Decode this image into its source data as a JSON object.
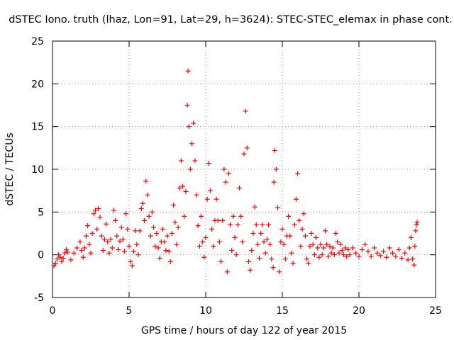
{
  "chart_data": {
    "type": "scatter",
    "title": "dSTEC Iono. truth (lhaz, Lon=91, Lat=29, h=3624): STEC-STEC_elemax in phase cont.",
    "xlabel": "GPS time / hours of day 122 of year 2015",
    "ylabel": "dSTEC  / TECUs",
    "xlim": [
      0,
      25
    ],
    "ylim": [
      -5,
      25
    ],
    "x_ticks": [
      "0",
      "5",
      "10",
      "15",
      "20",
      "25"
    ],
    "y_ticks": [
      "-5",
      "0",
      "5",
      "10",
      "15",
      "20",
      "25"
    ],
    "grid": true,
    "marker": "+",
    "color": "#ff0000",
    "series": [
      {
        "values": [
          [
            0.1,
            -1.3
          ],
          [
            0.2,
            -1.0
          ],
          [
            0.3,
            -0.5
          ],
          [
            0.4,
            0.0
          ],
          [
            0.5,
            -0.3
          ],
          [
            0.6,
            -0.8
          ],
          [
            0.7,
            -0.4
          ],
          [
            0.8,
            0.2
          ],
          [
            0.9,
            0.6
          ],
          [
            1.0,
            0.3
          ],
          [
            1.2,
            -0.6
          ],
          [
            1.4,
            0.2
          ],
          [
            1.6,
            0.8
          ],
          [
            1.8,
            1.5
          ],
          [
            1.9,
            0.5
          ],
          [
            2.0,
            -0.3
          ],
          [
            2.1,
            0.8
          ],
          [
            2.2,
            2.2
          ],
          [
            2.3,
            3.4
          ],
          [
            2.4,
            1.2
          ],
          [
            2.5,
            0.2
          ],
          [
            2.6,
            2.5
          ],
          [
            2.7,
            4.8
          ],
          [
            2.8,
            5.2
          ],
          [
            2.9,
            3.0
          ],
          [
            3.0,
            5.4
          ],
          [
            3.1,
            4.4
          ],
          [
            3.2,
            2.2
          ],
          [
            3.3,
            0.5
          ],
          [
            3.4,
            1.8
          ],
          [
            3.5,
            3.6
          ],
          [
            3.6,
            1.5
          ],
          [
            3.7,
            0.2
          ],
          [
            3.8,
            1.8
          ],
          [
            3.9,
            0.8
          ],
          [
            4.0,
            5.2
          ],
          [
            4.1,
            4.0
          ],
          [
            4.2,
            2.2
          ],
          [
            4.3,
            0.6
          ],
          [
            4.4,
            1.6
          ],
          [
            4.5,
            3.2
          ],
          [
            4.6,
            1.8
          ],
          [
            4.7,
            0.4
          ],
          [
            4.8,
            4.8
          ],
          [
            4.9,
            3.0
          ],
          [
            5.0,
            1.0
          ],
          [
            5.1,
            -0.8
          ],
          [
            5.2,
            -1.3
          ],
          [
            5.3,
            0.4
          ],
          [
            5.4,
            2.8
          ],
          [
            5.5,
            1.2
          ],
          [
            5.6,
            0.0
          ],
          [
            5.7,
            2.8
          ],
          [
            5.8,
            5.4
          ],
          [
            5.9,
            6.0
          ],
          [
            6.0,
            4.0
          ],
          [
            6.1,
            8.6
          ],
          [
            6.2,
            7.0
          ],
          [
            6.3,
            4.5
          ],
          [
            6.4,
            2.2
          ],
          [
            6.5,
            5.0
          ],
          [
            6.6,
            3.2
          ],
          [
            6.7,
            1.0
          ],
          [
            6.8,
            2.5
          ],
          [
            6.9,
            0.8
          ],
          [
            7.0,
            -0.4
          ],
          [
            7.1,
            1.5
          ],
          [
            7.2,
            3.0
          ],
          [
            7.3,
            1.5
          ],
          [
            7.4,
            0.5
          ],
          [
            7.5,
            2.2
          ],
          [
            7.6,
            0.4
          ],
          [
            7.7,
            -0.8
          ],
          [
            7.8,
            2.5
          ],
          [
            7.9,
            5.8
          ],
          [
            8.0,
            3.8
          ],
          [
            8.1,
            1.2
          ],
          [
            8.2,
            3.2
          ],
          [
            8.3,
            7.8
          ],
          [
            8.4,
            11.0
          ],
          [
            8.5,
            8.0
          ],
          [
            8.6,
            4.5
          ],
          [
            8.7,
            7.4
          ],
          [
            8.8,
            17.5
          ],
          [
            8.85,
            21.5
          ],
          [
            8.9,
            15.0
          ],
          [
            9.0,
            10.0
          ],
          [
            9.1,
            13.0
          ],
          [
            9.2,
            15.4
          ],
          [
            9.3,
            11.0
          ],
          [
            9.4,
            7.0
          ],
          [
            9.5,
            3.4
          ],
          [
            9.6,
            1.0
          ],
          [
            9.7,
            4.5
          ],
          [
            9.8,
            1.5
          ],
          [
            9.9,
            -0.3
          ],
          [
            10.0,
            2.0
          ],
          [
            10.1,
            6.5
          ],
          [
            10.2,
            10.7
          ],
          [
            10.3,
            7.5
          ],
          [
            10.4,
            3.0
          ],
          [
            10.5,
            1.0
          ],
          [
            10.6,
            4.0
          ],
          [
            10.7,
            6.5
          ],
          [
            10.8,
            4.0
          ],
          [
            10.9,
            1.5
          ],
          [
            11.0,
            -0.8
          ],
          [
            11.1,
            4.0
          ],
          [
            11.2,
            10.0
          ],
          [
            11.3,
            8.5
          ],
          [
            11.4,
            -2.0
          ],
          [
            11.5,
            9.5
          ],
          [
            11.6,
            3.5
          ],
          [
            11.7,
            0.5
          ],
          [
            11.8,
            4.5
          ],
          [
            11.9,
            2.0
          ],
          [
            12.0,
            0.0
          ],
          [
            12.1,
            3.5
          ],
          [
            12.2,
            7.8
          ],
          [
            12.3,
            4.5
          ],
          [
            12.4,
            1.5
          ],
          [
            12.5,
            11.8
          ],
          [
            12.6,
            16.8
          ],
          [
            12.7,
            12.5
          ],
          [
            12.8,
            -0.8
          ],
          [
            12.9,
            -1.8
          ],
          [
            13.0,
            0.5
          ],
          [
            13.1,
            2.5
          ],
          [
            13.2,
            5.6
          ],
          [
            13.3,
            3.5
          ],
          [
            13.4,
            1.2
          ],
          [
            13.5,
            -0.4
          ],
          [
            13.6,
            2.5
          ],
          [
            13.7,
            3.5
          ],
          [
            13.8,
            1.5
          ],
          [
            13.9,
            0.2
          ],
          [
            14.0,
            1.8
          ],
          [
            14.1,
            3.5
          ],
          [
            14.2,
            1.2
          ],
          [
            14.3,
            -0.5
          ],
          [
            14.4,
            -1.5
          ],
          [
            14.45,
            8.5
          ],
          [
            14.5,
            12.2
          ],
          [
            14.6,
            10.0
          ],
          [
            14.7,
            5.5
          ],
          [
            14.8,
            -2.0
          ],
          [
            14.9,
            1.5
          ],
          [
            15.0,
            3.0
          ],
          [
            15.1,
            1.2
          ],
          [
            15.2,
            -0.5
          ],
          [
            15.3,
            2.2
          ],
          [
            15.4,
            4.5
          ],
          [
            15.5,
            2.2
          ],
          [
            15.6,
            0.2
          ],
          [
            15.7,
            -1.0
          ],
          [
            15.8,
            3.5
          ],
          [
            15.9,
            6.5
          ],
          [
            16.0,
            9.5
          ],
          [
            16.1,
            4.0
          ],
          [
            16.2,
            1.0
          ],
          [
            16.3,
            3.0
          ],
          [
            16.4,
            4.8
          ],
          [
            16.5,
            2.2
          ],
          [
            16.6,
            -0.5
          ],
          [
            16.7,
            -1.0
          ],
          [
            16.8,
            1.0
          ],
          [
            16.9,
            2.5
          ],
          [
            17.0,
            1.2
          ],
          [
            17.1,
            0.0
          ],
          [
            17.2,
            2.0
          ],
          [
            17.3,
            0.8
          ],
          [
            17.4,
            -0.3
          ],
          [
            17.5,
            1.2
          ],
          [
            17.6,
            0.0
          ],
          [
            17.7,
            0.8
          ],
          [
            17.8,
            2.8
          ],
          [
            17.9,
            1.2
          ],
          [
            18.0,
            -0.2
          ],
          [
            18.1,
            1.0
          ],
          [
            18.2,
            0.2
          ],
          [
            18.3,
            0.8
          ],
          [
            18.4,
            0.0
          ],
          [
            18.5,
            2.5
          ],
          [
            18.6,
            1.5
          ],
          [
            18.7,
            0.2
          ],
          [
            18.8,
            1.2
          ],
          [
            18.9,
            0.5
          ],
          [
            19.0,
            0.0
          ],
          [
            19.1,
            0.8
          ],
          [
            19.2,
            -0.2
          ],
          [
            19.3,
            0.6
          ],
          [
            19.4,
            0.0
          ],
          [
            19.6,
            0.8
          ],
          [
            19.8,
            0.2
          ],
          [
            20.0,
            -0.2
          ],
          [
            20.2,
            0.6
          ],
          [
            20.4,
            1.2
          ],
          [
            20.6,
            0.4
          ],
          [
            20.8,
            -0.2
          ],
          [
            21.0,
            0.8
          ],
          [
            21.2,
            0.2
          ],
          [
            21.4,
            -0.1
          ],
          [
            21.6,
            0.4
          ],
          [
            21.8,
            -0.3
          ],
          [
            22.0,
            0.8
          ],
          [
            22.2,
            0.2
          ],
          [
            22.4,
            -0.2
          ],
          [
            22.6,
            0.6
          ],
          [
            22.8,
            -0.4
          ],
          [
            23.0,
            0.2
          ],
          [
            23.2,
            -0.6
          ],
          [
            23.3,
            0.8
          ],
          [
            23.4,
            2.0
          ],
          [
            23.5,
            -0.5
          ],
          [
            23.6,
            -1.2
          ],
          [
            23.65,
            1.0
          ],
          [
            23.7,
            2.8
          ],
          [
            23.75,
            3.5
          ],
          [
            23.8,
            3.8
          ]
        ]
      }
    ]
  }
}
